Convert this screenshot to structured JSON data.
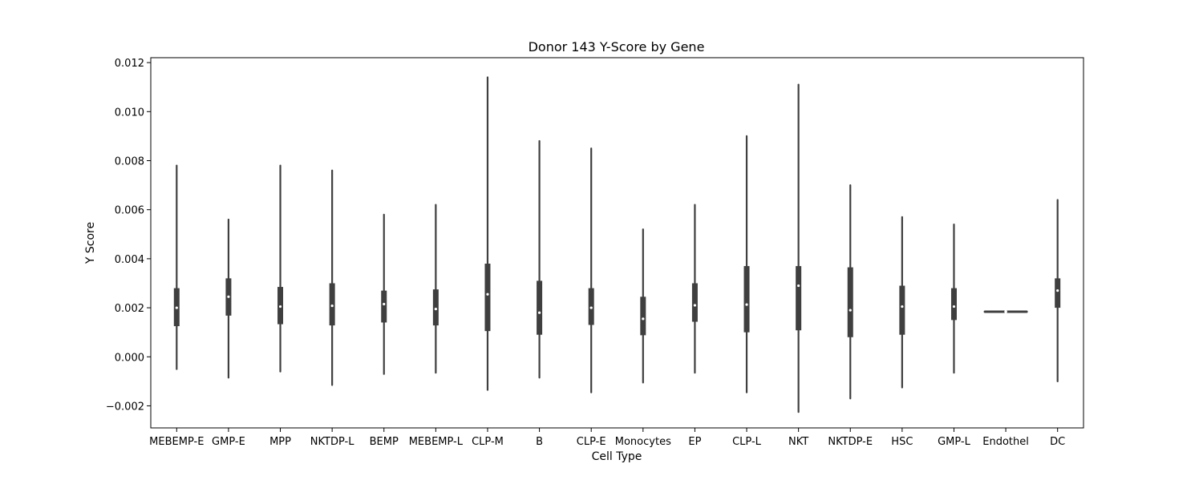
{
  "chart_data": {
    "type": "violin",
    "title": "Donor 143 Y-Score by Gene",
    "xlabel": "Cell Type",
    "ylabel": "Y Score",
    "ylim": [
      -0.0029,
      0.0122
    ],
    "yticks": [
      -0.002,
      0.0,
      0.002,
      0.004,
      0.006,
      0.008,
      0.01,
      0.012
    ],
    "ytick_labels": [
      "−0.002",
      "0.000",
      "0.002",
      "0.004",
      "0.006",
      "0.008",
      "0.010",
      "0.012"
    ],
    "grid": false,
    "colors": {
      "box": "#3f3f3f",
      "median": "#ffffff",
      "frame": "#000000"
    },
    "categories": [
      "MEBEMP-E",
      "GMP-E",
      "MPP",
      "NKTDP-L",
      "BEMP",
      "MEBEMP-L",
      "CLP-M",
      "B",
      "CLP-E",
      "Monocytes",
      "EP",
      "CLP-L",
      "NKT",
      "NKTDP-E",
      "HSC",
      "GMP-L",
      "Endothel",
      "DC"
    ],
    "violins": [
      {
        "category": "MEBEMP-E",
        "min": -0.0005,
        "q1": 0.00125,
        "median": 0.002,
        "q3": 0.0028,
        "max": 0.0078
      },
      {
        "category": "GMP-E",
        "min": -0.00085,
        "q1": 0.00168,
        "median": 0.00245,
        "q3": 0.0032,
        "max": 0.0056
      },
      {
        "category": "MPP",
        "min": -0.0006,
        "q1": 0.00133,
        "median": 0.00205,
        "q3": 0.00285,
        "max": 0.0078
      },
      {
        "category": "NKTDP-L",
        "min": -0.00115,
        "q1": 0.00128,
        "median": 0.00208,
        "q3": 0.003,
        "max": 0.0076
      },
      {
        "category": "BEMP",
        "min": -0.0007,
        "q1": 0.0014,
        "median": 0.00215,
        "q3": 0.0027,
        "max": 0.0058
      },
      {
        "category": "MEBEMP-L",
        "min": -0.00065,
        "q1": 0.00128,
        "median": 0.00195,
        "q3": 0.00275,
        "max": 0.0062
      },
      {
        "category": "CLP-M",
        "min": -0.00135,
        "q1": 0.00105,
        "median": 0.00255,
        "q3": 0.0038,
        "max": 0.0114
      },
      {
        "category": "B",
        "min": -0.00085,
        "q1": 0.0009,
        "median": 0.0018,
        "q3": 0.0031,
        "max": 0.0088
      },
      {
        "category": "CLP-E",
        "min": -0.00145,
        "q1": 0.0013,
        "median": 0.002,
        "q3": 0.0028,
        "max": 0.0085
      },
      {
        "category": "Monocytes",
        "min": -0.00105,
        "q1": 0.00088,
        "median": 0.00155,
        "q3": 0.00245,
        "max": 0.0052
      },
      {
        "category": "EP",
        "min": -0.00065,
        "q1": 0.00143,
        "median": 0.0021,
        "q3": 0.003,
        "max": 0.0062
      },
      {
        "category": "CLP-L",
        "min": -0.00145,
        "q1": 0.001,
        "median": 0.00213,
        "q3": 0.0037,
        "max": 0.009
      },
      {
        "category": "NKT",
        "min": -0.00225,
        "q1": 0.00108,
        "median": 0.0029,
        "q3": 0.0037,
        "max": 0.0111
      },
      {
        "category": "NKTDP-E",
        "min": -0.0017,
        "q1": 0.0008,
        "median": 0.0019,
        "q3": 0.00365,
        "max": 0.007
      },
      {
        "category": "HSC",
        "min": -0.00125,
        "q1": 0.0009,
        "median": 0.00205,
        "q3": 0.0029,
        "max": 0.0057
      },
      {
        "category": "GMP-L",
        "min": -0.00065,
        "q1": 0.0015,
        "median": 0.00205,
        "q3": 0.0028,
        "max": 0.0054
      },
      {
        "category": "Endothel",
        "min": 0.00184,
        "q1": 0.00184,
        "median": 0.00184,
        "q3": 0.00184,
        "max": 0.00184
      },
      {
        "category": "DC",
        "min": -0.001,
        "q1": 0.002,
        "median": 0.0027,
        "q3": 0.0032,
        "max": 0.0064
      }
    ]
  }
}
